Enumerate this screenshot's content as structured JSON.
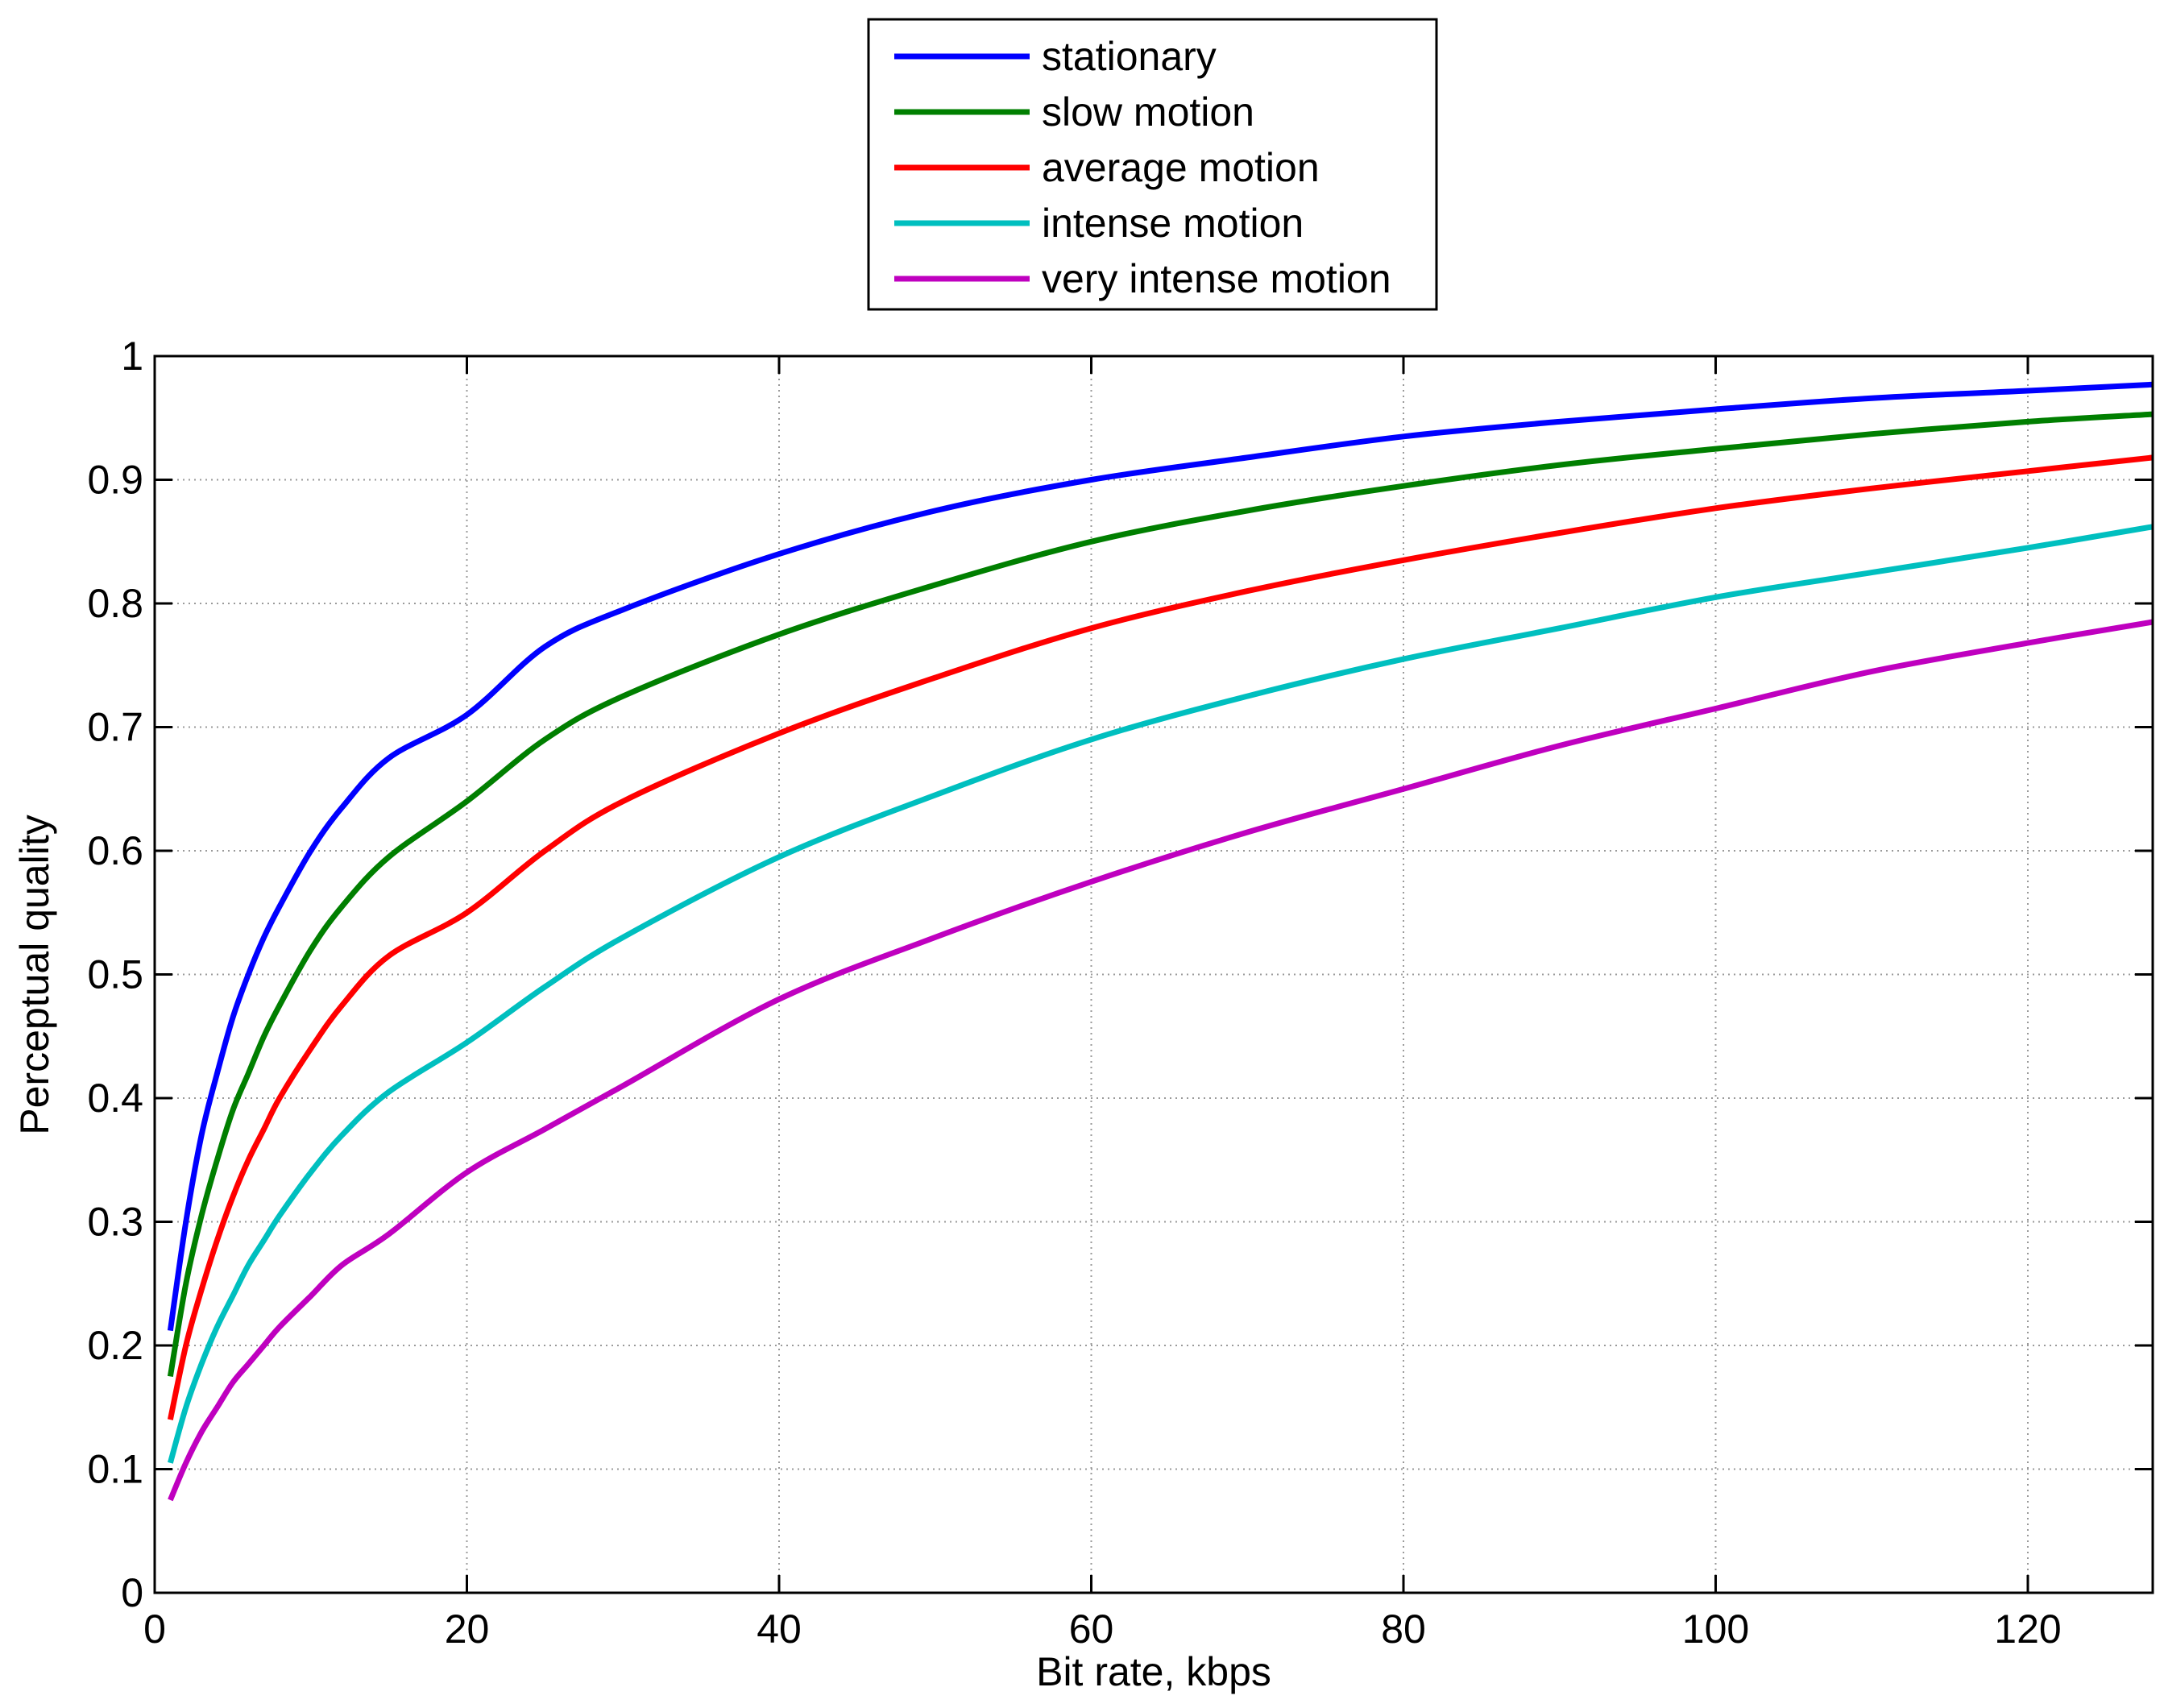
{
  "chart_data": {
    "type": "line",
    "title": "",
    "xlabel": "Bit rate, kbps",
    "ylabel": "Perceptual quality",
    "xlim": [
      0,
      128
    ],
    "ylim": [
      0,
      1
    ],
    "x_ticks": [
      0,
      20,
      40,
      60,
      80,
      100,
      120
    ],
    "y_ticks": [
      0,
      0.1,
      0.2,
      0.3,
      0.4,
      0.5,
      0.6,
      0.7,
      0.8,
      0.9,
      1
    ],
    "grid": true,
    "legend_position": "top-center, outside plot",
    "x": [
      1,
      2,
      3,
      4,
      5,
      6,
      7,
      8,
      10,
      12,
      15,
      20,
      25,
      30,
      40,
      50,
      60,
      70,
      80,
      90,
      100,
      110,
      120,
      128
    ],
    "series": [
      {
        "name": "stationary",
        "color": "#0000ff",
        "values": [
          0.212,
          0.3,
          0.37,
          0.42,
          0.465,
          0.5,
          0.53,
          0.555,
          0.6,
          0.635,
          0.675,
          0.71,
          0.765,
          0.795,
          0.84,
          0.875,
          0.9,
          0.918,
          0.935,
          0.947,
          0.957,
          0.966,
          0.972,
          0.977
        ]
      },
      {
        "name": "slow motion",
        "color": "#007f00",
        "values": [
          0.175,
          0.25,
          0.305,
          0.35,
          0.39,
          0.42,
          0.45,
          0.475,
          0.52,
          0.555,
          0.595,
          0.64,
          0.69,
          0.725,
          0.775,
          0.815,
          0.85,
          0.875,
          0.895,
          0.912,
          0.925,
          0.937,
          0.947,
          0.953
        ]
      },
      {
        "name": "average motion",
        "color": "#ff0000",
        "values": [
          0.14,
          0.2,
          0.245,
          0.285,
          0.32,
          0.35,
          0.375,
          0.4,
          0.44,
          0.475,
          0.515,
          0.55,
          0.6,
          0.64,
          0.695,
          0.74,
          0.78,
          0.81,
          0.835,
          0.857,
          0.877,
          0.893,
          0.907,
          0.918
        ]
      },
      {
        "name": "intense motion",
        "color": "#00bfbf",
        "values": [
          0.105,
          0.15,
          0.185,
          0.215,
          0.24,
          0.265,
          0.285,
          0.305,
          0.34,
          0.37,
          0.405,
          0.445,
          0.49,
          0.53,
          0.595,
          0.645,
          0.69,
          0.725,
          0.755,
          0.78,
          0.805,
          0.825,
          0.845,
          0.862
        ]
      },
      {
        "name": "very intense motion",
        "color": "#bf00bf",
        "values": [
          0.075,
          0.105,
          0.13,
          0.15,
          0.17,
          0.185,
          0.2,
          0.215,
          0.24,
          0.265,
          0.29,
          0.34,
          0.375,
          0.41,
          0.48,
          0.53,
          0.575,
          0.615,
          0.65,
          0.685,
          0.715,
          0.745,
          0.768,
          0.785
        ]
      }
    ]
  }
}
